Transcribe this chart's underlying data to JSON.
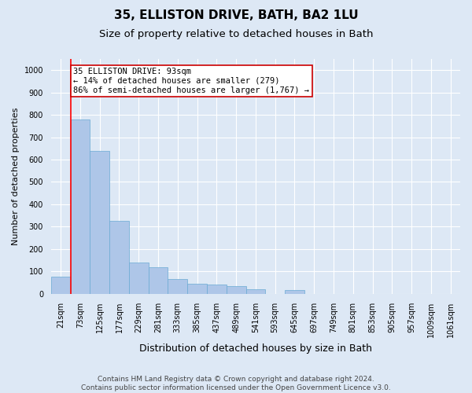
{
  "title": "35, ELLISTON DRIVE, BATH, BA2 1LU",
  "subtitle": "Size of property relative to detached houses in Bath",
  "xlabel": "Distribution of detached houses by size in Bath",
  "ylabel": "Number of detached properties",
  "categories": [
    "21sqm",
    "73sqm",
    "125sqm",
    "177sqm",
    "229sqm",
    "281sqm",
    "333sqm",
    "385sqm",
    "437sqm",
    "489sqm",
    "541sqm",
    "593sqm",
    "645sqm",
    "697sqm",
    "749sqm",
    "801sqm",
    "853sqm",
    "905sqm",
    "957sqm",
    "1009sqm",
    "1061sqm"
  ],
  "values": [
    75,
    780,
    640,
    325,
    140,
    120,
    65,
    45,
    40,
    35,
    20,
    0,
    15,
    0,
    0,
    0,
    0,
    0,
    0,
    0,
    0
  ],
  "bar_color": "#aec6e8",
  "bar_edge_color": "#6aaad4",
  "red_line_index": 1,
  "annotation_text": "35 ELLISTON DRIVE: 93sqm\n← 14% of detached houses are smaller (279)\n86% of semi-detached houses are larger (1,767) →",
  "annotation_box_facecolor": "#ffffff",
  "annotation_box_edgecolor": "#cc0000",
  "fig_facecolor": "#dde8f5",
  "axes_facecolor": "#dde8f5",
  "grid_color": "#ffffff",
  "footer_line1": "Contains HM Land Registry data © Crown copyright and database right 2024.",
  "footer_line2": "Contains public sector information licensed under the Open Government Licence v3.0.",
  "ylim": [
    0,
    1050
  ],
  "yticks": [
    0,
    100,
    200,
    300,
    400,
    500,
    600,
    700,
    800,
    900,
    1000
  ],
  "title_fontsize": 11,
  "subtitle_fontsize": 9.5,
  "xlabel_fontsize": 9,
  "ylabel_fontsize": 8,
  "tick_fontsize": 7,
  "annotation_fontsize": 7.5,
  "footer_fontsize": 6.5
}
